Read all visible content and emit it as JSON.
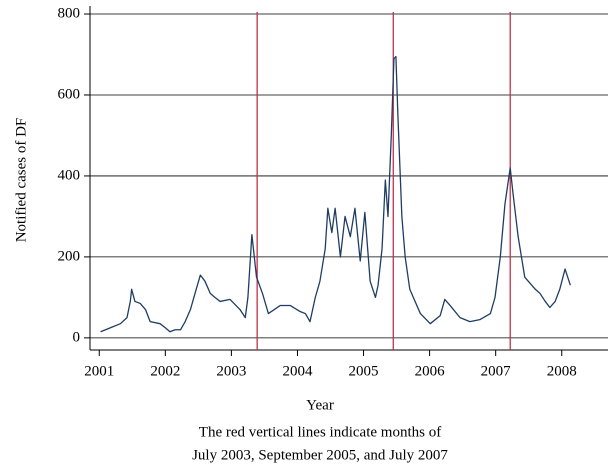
{
  "chart_data": {
    "type": "line",
    "xlabel": "Year",
    "ylabel": "Notified cases of DF",
    "note": [
      "The red vertical lines indicate months of",
      "July 2003, September 2005, and July 2007"
    ],
    "x": [
      2001.02,
      2001.17,
      2001.32,
      2001.42,
      2001.47,
      2001.49,
      2001.54,
      2001.62,
      2001.7,
      2001.77,
      2001.92,
      2002.0,
      2002.07,
      2002.15,
      2002.23,
      2002.3,
      2002.38,
      2002.45,
      2002.53,
      2002.6,
      2002.68,
      2002.75,
      2002.83,
      2002.98,
      2003.13,
      2003.21,
      2003.25,
      2003.31,
      2003.38,
      2003.47,
      2003.56,
      2003.74,
      2003.89,
      2004.04,
      2004.12,
      2004.19,
      2004.27,
      2004.34,
      2004.42,
      2004.46,
      2004.52,
      2004.57,
      2004.65,
      2004.72,
      2004.8,
      2004.87,
      2004.95,
      2005.02,
      2005.1,
      2005.18,
      2005.22,
      2005.28,
      2005.33,
      2005.37,
      2005.42,
      2005.46,
      2005.49,
      2005.52,
      2005.58,
      2005.63,
      2005.7,
      2005.86,
      2006.01,
      2006.16,
      2006.23,
      2006.31,
      2006.46,
      2006.61,
      2006.76,
      2006.92,
      2006.99,
      2007.07,
      2007.14,
      2007.22,
      2007.26,
      2007.34,
      2007.44,
      2007.6,
      2007.67,
      2007.75,
      2007.82,
      2007.9,
      2007.97,
      2008.05,
      2008.13
    ],
    "series": [
      {
        "color": "#1f3d63",
        "values": [
          15,
          25,
          35,
          50,
          90,
          120,
          90,
          85,
          70,
          40,
          35,
          25,
          15,
          20,
          20,
          40,
          70,
          110,
          155,
          140,
          110,
          100,
          90,
          95,
          70,
          50,
          100,
          255,
          150,
          110,
          60,
          80,
          80,
          65,
          60,
          40,
          100,
          140,
          220,
          320,
          260,
          320,
          200,
          300,
          250,
          320,
          190,
          310,
          140,
          100,
          130,
          220,
          390,
          300,
          500,
          690,
          695,
          550,
          300,
          200,
          120,
          60,
          35,
          55,
          95,
          80,
          50,
          40,
          45,
          60,
          100,
          200,
          330,
          420,
          360,
          250,
          150,
          120,
          110,
          90,
          75,
          90,
          120,
          170,
          130
        ]
      }
    ],
    "vlines": {
      "color": "#c0304a",
      "x": [
        2003.39,
        2005.45,
        2007.22
      ]
    },
    "xlim": [
      2000.86,
      2008.7
    ],
    "ylim": [
      -30,
      805
    ],
    "xticks": [
      2001,
      2002,
      2003,
      2004,
      2005,
      2006,
      2007,
      2008
    ],
    "yticks": [
      0,
      200,
      400,
      600,
      800
    ],
    "grid": true
  }
}
